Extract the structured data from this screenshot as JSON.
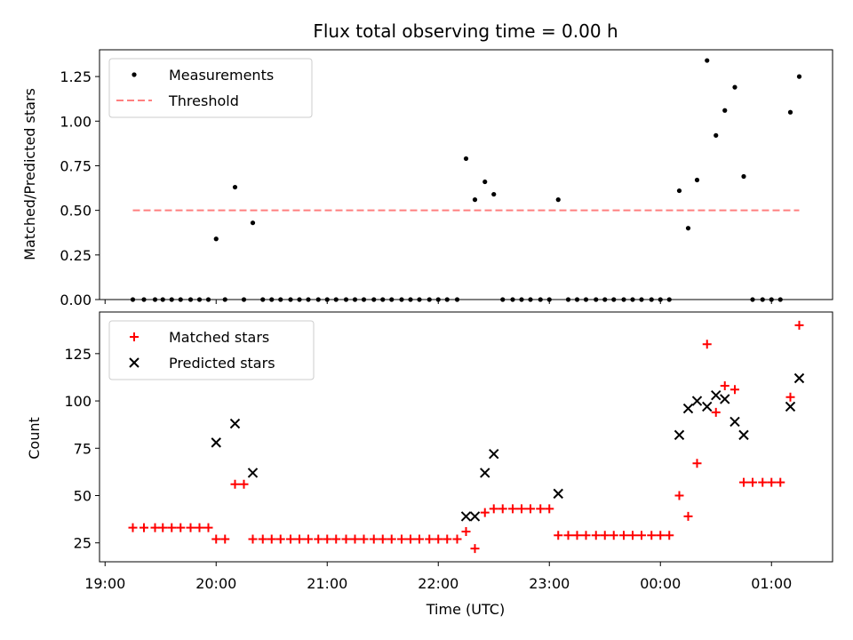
{
  "chart_data": [
    {
      "type": "scatter",
      "title": "Flux total observing time = 0.00 h",
      "xlabel": "",
      "ylabel": "Matched/Predicted stars",
      "xlim": [
        18.95,
        25.55
      ],
      "ylim": [
        0.0,
        1.4
      ],
      "x_ticks": [
        19,
        20,
        21,
        22,
        23,
        24,
        25
      ],
      "y_ticks": [
        0.0,
        0.25,
        0.5,
        0.75,
        1.0,
        1.25
      ],
      "y_tick_labels": [
        "0.00",
        "0.25",
        "0.50",
        "0.75",
        "1.00",
        "1.25"
      ],
      "legend": {
        "placement": "top-left",
        "entries": [
          "Measurements",
          "Threshold"
        ]
      },
      "threshold": {
        "name": "Threshold",
        "x": [
          19.25,
          25.25
        ],
        "y": 0.5,
        "color": "#ff7f7f",
        "style": "dashed"
      },
      "series": [
        {
          "name": "Measurements",
          "marker": "dot",
          "color": "#000000",
          "points": [
            [
              19.25,
              0
            ],
            [
              19.35,
              0
            ],
            [
              19.45,
              0
            ],
            [
              19.52,
              0
            ],
            [
              19.6,
              0
            ],
            [
              19.68,
              0
            ],
            [
              19.77,
              0
            ],
            [
              19.85,
              0
            ],
            [
              19.93,
              0
            ],
            [
              20.0,
              0.34
            ],
            [
              20.08,
              0
            ],
            [
              20.17,
              0.63
            ],
            [
              20.25,
              0
            ],
            [
              20.33,
              0.43
            ],
            [
              20.42,
              0
            ],
            [
              20.5,
              0
            ],
            [
              20.58,
              0
            ],
            [
              20.67,
              0
            ],
            [
              20.75,
              0
            ],
            [
              20.83,
              0
            ],
            [
              20.92,
              0
            ],
            [
              21.0,
              0
            ],
            [
              21.08,
              0
            ],
            [
              21.17,
              0
            ],
            [
              21.25,
              0
            ],
            [
              21.33,
              0
            ],
            [
              21.42,
              0
            ],
            [
              21.5,
              0
            ],
            [
              21.58,
              0
            ],
            [
              21.67,
              0
            ],
            [
              21.75,
              0
            ],
            [
              21.83,
              0
            ],
            [
              21.92,
              0
            ],
            [
              22.0,
              0
            ],
            [
              22.08,
              0
            ],
            [
              22.17,
              0
            ],
            [
              22.25,
              0.79
            ],
            [
              22.33,
              0.56
            ],
            [
              22.42,
              0.66
            ],
            [
              22.5,
              0.59
            ],
            [
              22.58,
              0
            ],
            [
              22.67,
              0
            ],
            [
              22.75,
              0
            ],
            [
              22.83,
              0
            ],
            [
              22.92,
              0
            ],
            [
              23.0,
              0
            ],
            [
              23.08,
              0.56
            ],
            [
              23.17,
              0
            ],
            [
              23.25,
              0
            ],
            [
              23.33,
              0
            ],
            [
              23.42,
              0
            ],
            [
              23.5,
              0
            ],
            [
              23.58,
              0
            ],
            [
              23.67,
              0
            ],
            [
              23.75,
              0
            ],
            [
              23.83,
              0
            ],
            [
              23.92,
              0
            ],
            [
              24.0,
              0
            ],
            [
              24.08,
              0
            ],
            [
              24.17,
              0.61
            ],
            [
              24.25,
              0.4
            ],
            [
              24.33,
              0.67
            ],
            [
              24.42,
              1.34
            ],
            [
              24.5,
              0.92
            ],
            [
              24.58,
              1.06
            ],
            [
              24.67,
              1.19
            ],
            [
              24.75,
              0.69
            ],
            [
              24.83,
              0
            ],
            [
              24.92,
              0
            ],
            [
              25.0,
              0
            ],
            [
              25.08,
              0
            ],
            [
              25.17,
              1.05
            ],
            [
              25.25,
              1.25
            ]
          ]
        }
      ]
    },
    {
      "type": "scatter",
      "title": "",
      "xlabel": "Time (UTC)",
      "ylabel": "Count",
      "xlim": [
        18.95,
        25.55
      ],
      "ylim": [
        15,
        147
      ],
      "x_ticks": [
        19,
        20,
        21,
        22,
        23,
        24,
        25
      ],
      "x_tick_labels": [
        "19:00",
        "20:00",
        "21:00",
        "22:00",
        "23:00",
        "00:00",
        "01:00"
      ],
      "y_ticks": [
        25,
        50,
        75,
        100,
        125
      ],
      "y_tick_labels": [
        "25",
        "50",
        "75",
        "100",
        "125"
      ],
      "legend": {
        "placement": "top-left",
        "entries": [
          "Matched stars",
          "Predicted stars"
        ]
      },
      "series": [
        {
          "name": "Matched stars",
          "marker": "plus",
          "color": "#ff0000",
          "points": [
            [
              19.25,
              33
            ],
            [
              19.35,
              33
            ],
            [
              19.45,
              33
            ],
            [
              19.52,
              33
            ],
            [
              19.6,
              33
            ],
            [
              19.68,
              33
            ],
            [
              19.77,
              33
            ],
            [
              19.85,
              33
            ],
            [
              19.93,
              33
            ],
            [
              20.0,
              27
            ],
            [
              20.08,
              27
            ],
            [
              20.17,
              56
            ],
            [
              20.25,
              56
            ],
            [
              20.33,
              27
            ],
            [
              20.42,
              27
            ],
            [
              20.5,
              27
            ],
            [
              20.58,
              27
            ],
            [
              20.67,
              27
            ],
            [
              20.75,
              27
            ],
            [
              20.83,
              27
            ],
            [
              20.92,
              27
            ],
            [
              21.0,
              27
            ],
            [
              21.08,
              27
            ],
            [
              21.17,
              27
            ],
            [
              21.25,
              27
            ],
            [
              21.33,
              27
            ],
            [
              21.42,
              27
            ],
            [
              21.5,
              27
            ],
            [
              21.58,
              27
            ],
            [
              21.67,
              27
            ],
            [
              21.75,
              27
            ],
            [
              21.83,
              27
            ],
            [
              21.92,
              27
            ],
            [
              22.0,
              27
            ],
            [
              22.08,
              27
            ],
            [
              22.17,
              27
            ],
            [
              22.25,
              31
            ],
            [
              22.33,
              22
            ],
            [
              22.42,
              41
            ],
            [
              22.5,
              43
            ],
            [
              22.58,
              43
            ],
            [
              22.67,
              43
            ],
            [
              22.75,
              43
            ],
            [
              22.83,
              43
            ],
            [
              22.92,
              43
            ],
            [
              23.0,
              43
            ],
            [
              23.08,
              29
            ],
            [
              23.17,
              29
            ],
            [
              23.25,
              29
            ],
            [
              23.33,
              29
            ],
            [
              23.42,
              29
            ],
            [
              23.5,
              29
            ],
            [
              23.58,
              29
            ],
            [
              23.67,
              29
            ],
            [
              23.75,
              29
            ],
            [
              23.83,
              29
            ],
            [
              23.92,
              29
            ],
            [
              24.0,
              29
            ],
            [
              24.08,
              29
            ],
            [
              24.17,
              50
            ],
            [
              24.25,
              39
            ],
            [
              24.33,
              67
            ],
            [
              24.42,
              130
            ],
            [
              24.5,
              94
            ],
            [
              24.58,
              108
            ],
            [
              24.67,
              106
            ],
            [
              24.75,
              57
            ],
            [
              24.83,
              57
            ],
            [
              24.92,
              57
            ],
            [
              25.0,
              57
            ],
            [
              25.08,
              57
            ],
            [
              25.17,
              102
            ],
            [
              25.25,
              140
            ]
          ]
        },
        {
          "name": "Predicted stars",
          "marker": "x",
          "color": "#000000",
          "points": [
            [
              20.0,
              78
            ],
            [
              20.17,
              88
            ],
            [
              20.33,
              62
            ],
            [
              22.25,
              39
            ],
            [
              22.33,
              39
            ],
            [
              22.42,
              62
            ],
            [
              22.5,
              72
            ],
            [
              23.08,
              51
            ],
            [
              24.17,
              82
            ],
            [
              24.25,
              96
            ],
            [
              24.33,
              100
            ],
            [
              24.42,
              97
            ],
            [
              24.5,
              103
            ],
            [
              24.58,
              101
            ],
            [
              24.67,
              89
            ],
            [
              24.75,
              82
            ],
            [
              25.17,
              97
            ],
            [
              25.25,
              112
            ]
          ]
        }
      ]
    }
  ]
}
